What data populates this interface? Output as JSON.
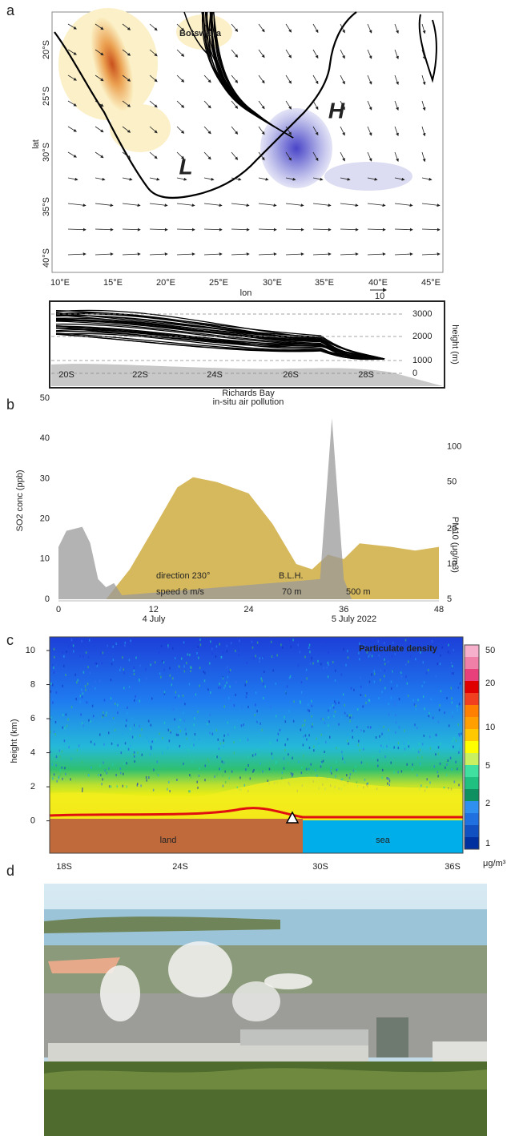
{
  "panels": {
    "a": {
      "label": "a",
      "lat_label": "lat",
      "lon_label": "lon",
      "lat_ticks": [
        "20°S",
        "25°S",
        "30°S",
        "35°S",
        "40°S"
      ],
      "lon_ticks": [
        "10°E",
        "15°E",
        "20°E",
        "25°E",
        "30°E",
        "35°E",
        "40°E",
        "45°E"
      ],
      "vector_scale": "10",
      "places": {
        "botswana": "Botswana",
        "high": "H",
        "low": "L"
      },
      "inset": {
        "height_ticks": [
          "3000",
          "2000",
          "1000",
          "0"
        ],
        "height_label": "height (m)",
        "lat_ticks": [
          "20S",
          "22S",
          "24S",
          "26S",
          "28S"
        ]
      }
    },
    "b": {
      "label": "b",
      "title": "Richards Bay",
      "subtitle": "in-situ air pollution",
      "y_label": "SO2 conc (ppb)",
      "y2_label": "PM10 (μg/m3)",
      "xlim": [
        0,
        48
      ],
      "xticks": [
        0,
        12,
        24,
        36,
        48
      ],
      "ylim": [
        0,
        50
      ],
      "yticks": [
        0,
        10,
        20,
        30,
        40,
        50
      ],
      "y2lim": [
        5,
        260
      ],
      "y2ticks": [
        5,
        10,
        20,
        50,
        100
      ],
      "y2log": true,
      "dates": [
        "4 July",
        "5 July 2022"
      ],
      "annotations": [
        "direction 230°",
        "speed 6 m/s",
        "B.L.H.",
        "70 m",
        "500 m"
      ],
      "series": [
        {
          "color": "#c9a227",
          "axis": "y2",
          "x": [
            6,
            9,
            12,
            15,
            17,
            20,
            24,
            27,
            30,
            32,
            34,
            36,
            38,
            42,
            45,
            48
          ],
          "values": [
            5,
            9,
            20,
            45,
            55,
            50,
            40,
            22,
            10,
            9,
            12,
            11,
            15,
            14,
            13,
            14
          ]
        },
        {
          "color": "#9a9a9a",
          "x": [
            0,
            1,
            3,
            4,
            5,
            6,
            7,
            8,
            33,
            34.5,
            36,
            37
          ],
          "values": [
            13,
            17,
            18,
            14,
            5,
            3,
            4,
            1,
            5,
            45,
            5,
            0
          ]
        }
      ]
    },
    "c": {
      "label": "c",
      "y_label": "height (km)",
      "ylim": [
        -1.9,
        10.8
      ],
      "yticks": [
        0,
        2,
        4,
        6,
        8,
        10
      ],
      "title": "Particulate density",
      "colorbar_ticks": [
        "50",
        "20",
        "10",
        "5",
        "2",
        "1"
      ],
      "colorbar_unit": "μg/m³",
      "surfaces": [
        "land",
        "sea"
      ],
      "x_ticks": [
        "18S",
        "24S",
        "30S",
        "36S"
      ]
    },
    "d": {
      "label": "d"
    }
  }
}
